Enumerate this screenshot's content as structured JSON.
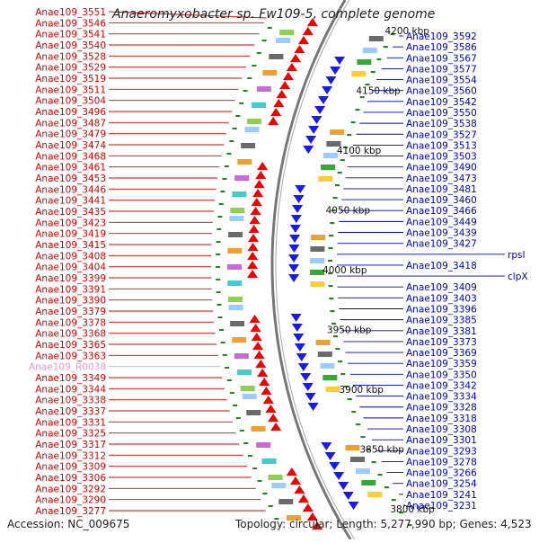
{
  "title": "Anaeromyxobacter sp. Fw109-5, complete genome",
  "footer": {
    "accession": "Accession: NC_009675",
    "topology": "Topology: circular; Length: 5,277,990 bp; Genes: 4,523"
  },
  "colors": {
    "left_labels": "#dd0000",
    "left_rna_label": "#ee99cc",
    "right_labels": "#0000cc",
    "forward_genes": "#ee0000",
    "reverse_genes": "#1a1aee",
    "backbone": "#777777"
  },
  "left_labels": [
    "Anae109_3551",
    "Anae109_3546",
    "Anae109_3541",
    "Anae109_3540",
    "Anae109_3528",
    "Anae109_3529",
    "Anae109_3519",
    "Anae109_3511",
    "Anae109_3504",
    "Anae109_3496",
    "Anae109_3487",
    "Anae109_3479",
    "Anae109_3474",
    "Anae109_3468",
    "Anae109_3461",
    "Anae109_3453",
    "Anae109_3446",
    "Anae109_3441",
    "Anae109_3435",
    "Anae109_3423",
    "Anae109_3419",
    "Anae109_3415",
    "Anae109_3408",
    "Anae109_3404",
    "Anae109_3399",
    "Anae109_3391",
    "Anae109_3390",
    "Anae109_3379",
    "Anae109_3378",
    "Anae109_3368",
    "Anae109_3365",
    "Anae109_3363",
    "Anae109_R0038",
    "Anae109_3349",
    "Anae109_3344",
    "Anae109_3338",
    "Anae109_3337",
    "Anae109_3331",
    "Anae109_3325",
    "Anae109_3317",
    "Anae109_3312",
    "Anae109_3309",
    "Anae109_3306",
    "Anae109_3292",
    "Anae109_3290",
    "Anae109_3277"
  ],
  "right_labels": [
    "Anae109_3592",
    "Anae109_3586",
    "Anae109_3567",
    "Anae109_3577",
    "Anae109_3554",
    "Anae109_3560",
    "Anae109_3542",
    "Anae109_3550",
    "Anae109_3538",
    "Anae109_3527",
    "Anae109_3513",
    "Anae109_3503",
    "Anae109_3490",
    "Anae109_3473",
    "Anae109_3481",
    "Anae109_3460",
    "Anae109_3466",
    "Anae109_3449",
    "Anae109_3439",
    "Anae109_3427",
    "rpsI",
    "Anae109_3418",
    "clpX",
    "Anae109_3409",
    "Anae109_3403",
    "Anae109_3396",
    "Anae109_3385",
    "Anae109_3381",
    "Anae109_3373",
    "Anae109_3369",
    "Anae109_3359",
    "Anae109_3350",
    "Anae109_3342",
    "Anae109_3334",
    "Anae109_3328",
    "Anae109_3318",
    "Anae109_3308",
    "Anae109_3301",
    "Anae109_3293",
    "Anae109_3278",
    "Anae109_3266",
    "Anae109_3254",
    "Anae109_3241",
    "Anae109_3231"
  ],
  "position_ticks": [
    {
      "label": "4200 kbp",
      "bp": 4200000
    },
    {
      "label": "4150 kbp",
      "bp": 4150000
    },
    {
      "label": "4100 kbp",
      "bp": 4100000
    },
    {
      "label": "4050 kbp",
      "bp": 4050000
    },
    {
      "label": "4000 kbp",
      "bp": 4000000
    },
    {
      "label": "3950 kbp",
      "bp": 3950000
    },
    {
      "label": "3900 kbp",
      "bp": 3900000
    },
    {
      "label": "3850 kbp",
      "bp": 3850000
    },
    {
      "label": "3800 kbp",
      "bp": 3800000
    }
  ]
}
